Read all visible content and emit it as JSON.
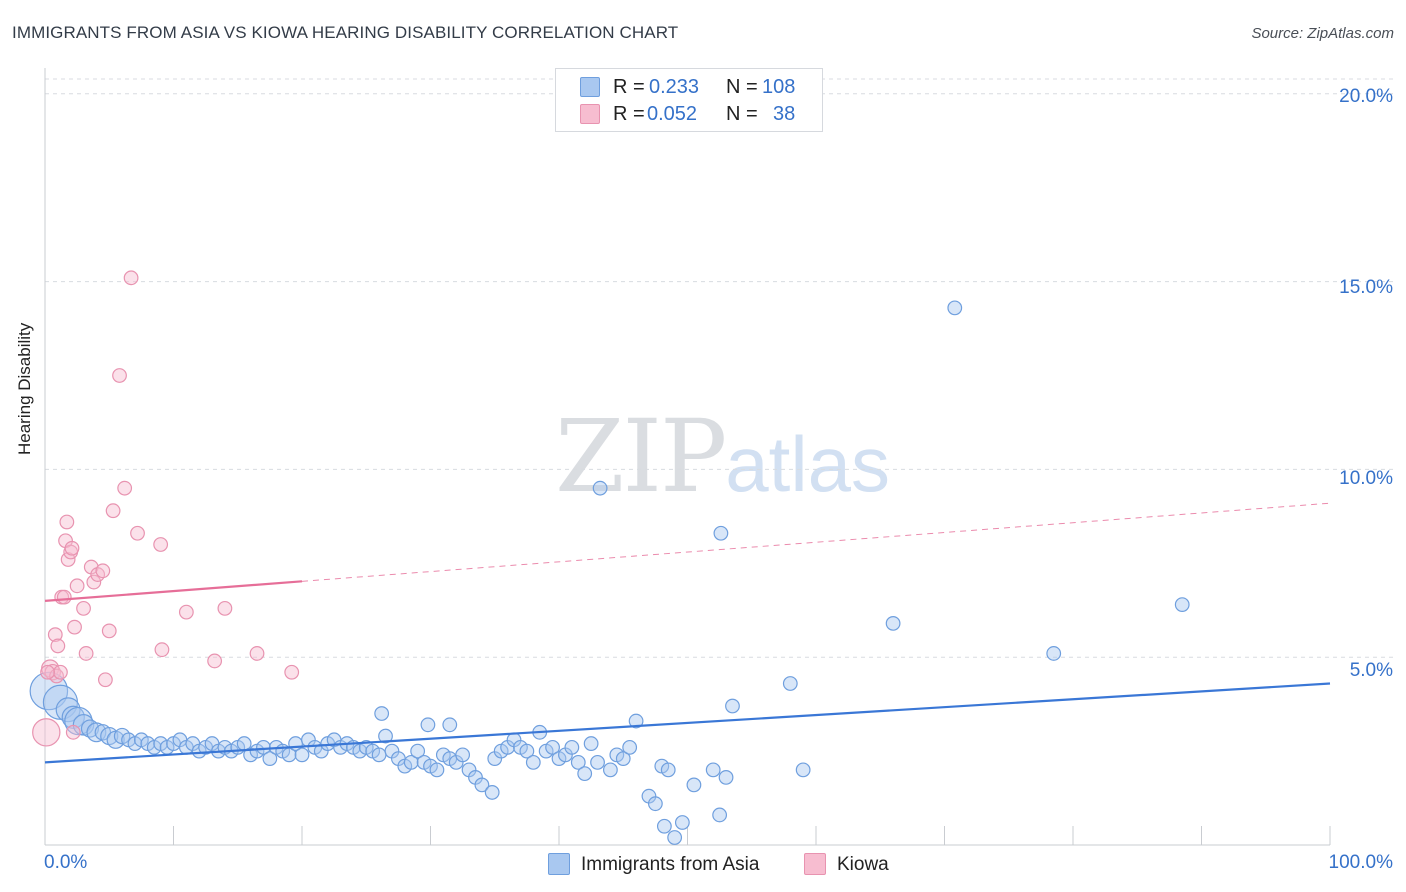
{
  "title": "IMMIGRANTS FROM ASIA VS KIOWA HEARING DISABILITY CORRELATION CHART",
  "source": "Source: ZipAtlas.com",
  "watermark": {
    "zip": "ZIP",
    "atlas": "atlas"
  },
  "legend_top": {
    "rows": [
      {
        "r_label": "R =",
        "r_value": "0.233",
        "n_label": "N =",
        "n_value": "108"
      },
      {
        "r_label": "R =",
        "r_value": "0.052",
        "n_label": "N =",
        "n_value": "38"
      }
    ]
  },
  "legend_bottom": [
    {
      "label": "Immigrants from Asia"
    },
    {
      "label": "Kiowa"
    }
  ],
  "axis": {
    "ylabel": "Hearing Disability",
    "y_ticks": [
      "5.0%",
      "10.0%",
      "15.0%",
      "20.0%"
    ],
    "x_min_label": "0.0%",
    "x_max_label": "100.0%"
  },
  "colors": {
    "blue": "#3a77d6",
    "blue_fill": "#a9c8f0",
    "pink": "#e66e98",
    "pink_fill": "#f7bdd0",
    "grid": "#d8dbe0",
    "axis_text": "#3571c9"
  },
  "chart_data": {
    "type": "scatter",
    "xlabel": "",
    "ylabel": "Hearing Disability",
    "xlim": [
      0,
      100
    ],
    "ylim": [
      0,
      20.5
    ],
    "y_gridlines": [
      5,
      10,
      15,
      20
    ],
    "series": [
      {
        "name": "Immigrants from Asia",
        "color": "#3a77d6",
        "R": 0.233,
        "N": 108,
        "trend": {
          "x0": 0,
          "y0": 2.2,
          "x1": 100,
          "y1": 4.3,
          "solid_until": 100
        },
        "points": [
          [
            0.3,
            4.1,
            2.2
          ],
          [
            1.2,
            3.8,
            2.0
          ],
          [
            1.8,
            3.6,
            1.4
          ],
          [
            2.2,
            3.4,
            1.3
          ],
          [
            2.6,
            3.3,
            1.6
          ],
          [
            3.0,
            3.2,
            1.2
          ],
          [
            3.5,
            3.1,
            1.0
          ],
          [
            4.0,
            3.0,
            1.1
          ],
          [
            4.5,
            3.0,
            0.9
          ],
          [
            5.0,
            2.9,
            1.0
          ],
          [
            5.5,
            2.8,
            1.0
          ],
          [
            6.0,
            2.9,
            0.9
          ],
          [
            6.5,
            2.8,
            0.8
          ],
          [
            7.0,
            2.7,
            0.8
          ],
          [
            7.5,
            2.8,
            0.8
          ],
          [
            8.0,
            2.7,
            0.8
          ],
          [
            8.5,
            2.6,
            0.8
          ],
          [
            9.0,
            2.7,
            0.8
          ],
          [
            9.5,
            2.6,
            0.8
          ],
          [
            10.0,
            2.7,
            0.8
          ],
          [
            10.5,
            2.8,
            0.8
          ],
          [
            11.0,
            2.6,
            0.8
          ],
          [
            11.5,
            2.7,
            0.8
          ],
          [
            12.0,
            2.5,
            0.8
          ],
          [
            12.5,
            2.6,
            0.8
          ],
          [
            13.0,
            2.7,
            0.8
          ],
          [
            13.5,
            2.5,
            0.8
          ],
          [
            14.0,
            2.6,
            0.8
          ],
          [
            14.5,
            2.5,
            0.8
          ],
          [
            15.0,
            2.6,
            0.8
          ],
          [
            15.5,
            2.7,
            0.8
          ],
          [
            16.0,
            2.4,
            0.8
          ],
          [
            16.5,
            2.5,
            0.8
          ],
          [
            17.0,
            2.6,
            0.8
          ],
          [
            17.5,
            2.3,
            0.8
          ],
          [
            18.0,
            2.6,
            0.8
          ],
          [
            18.5,
            2.5,
            0.8
          ],
          [
            19.0,
            2.4,
            0.8
          ],
          [
            19.5,
            2.7,
            0.8
          ],
          [
            20.0,
            2.4,
            0.8
          ],
          [
            20.5,
            2.8,
            0.8
          ],
          [
            21.0,
            2.6,
            0.8
          ],
          [
            21.5,
            2.5,
            0.8
          ],
          [
            22.0,
            2.7,
            0.8
          ],
          [
            22.5,
            2.8,
            0.8
          ],
          [
            23.0,
            2.6,
            0.8
          ],
          [
            23.5,
            2.7,
            0.8
          ],
          [
            24.0,
            2.6,
            0.8
          ],
          [
            24.5,
            2.5,
            0.8
          ],
          [
            25.0,
            2.6,
            0.8
          ],
          [
            25.5,
            2.5,
            0.8
          ],
          [
            26.0,
            2.4,
            0.8
          ],
          [
            26.5,
            2.9,
            0.8
          ],
          [
            27.0,
            2.5,
            0.8
          ],
          [
            27.5,
            2.3,
            0.8
          ],
          [
            28.0,
            2.1,
            0.8
          ],
          [
            28.5,
            2.2,
            0.8
          ],
          [
            29.0,
            2.5,
            0.8
          ],
          [
            29.5,
            2.2,
            0.8
          ],
          [
            30.0,
            2.1,
            0.8
          ],
          [
            30.5,
            2.0,
            0.8
          ],
          [
            31.0,
            2.4,
            0.8
          ],
          [
            31.5,
            2.3,
            0.8
          ],
          [
            32.0,
            2.2,
            0.8
          ],
          [
            32.5,
            2.4,
            0.8
          ],
          [
            33.0,
            2.0,
            0.8
          ],
          [
            33.5,
            1.8,
            0.8
          ],
          [
            34.0,
            1.6,
            0.8
          ],
          [
            35.0,
            2.3,
            0.8
          ],
          [
            35.5,
            2.5,
            0.8
          ],
          [
            36.0,
            2.6,
            0.8
          ],
          [
            36.5,
            2.8,
            0.8
          ],
          [
            37.0,
            2.6,
            0.8
          ],
          [
            37.5,
            2.5,
            0.8
          ],
          [
            38.0,
            2.2,
            0.8
          ],
          [
            38.5,
            3.0,
            0.8
          ],
          [
            39.0,
            2.5,
            0.8
          ],
          [
            39.5,
            2.6,
            0.8
          ],
          [
            40.0,
            2.3,
            0.8
          ],
          [
            40.5,
            2.4,
            0.8
          ],
          [
            41.0,
            2.6,
            0.8
          ],
          [
            41.5,
            2.2,
            0.8
          ],
          [
            42.0,
            1.9,
            0.8
          ],
          [
            42.5,
            2.7,
            0.8
          ],
          [
            43.0,
            2.2,
            0.8
          ],
          [
            44.0,
            2.0,
            0.8
          ],
          [
            44.5,
            2.4,
            0.8
          ],
          [
            45.0,
            2.3,
            0.8
          ],
          [
            45.5,
            2.6,
            0.8
          ],
          [
            46.0,
            3.3,
            0.8
          ],
          [
            47.0,
            1.3,
            0.8
          ],
          [
            47.5,
            1.1,
            0.8
          ],
          [
            48.0,
            2.1,
            0.8
          ],
          [
            48.5,
            2.0,
            0.8
          ],
          [
            49.0,
            0.2,
            0.8
          ],
          [
            50.5,
            1.6,
            0.8
          ],
          [
            52.0,
            2.0,
            0.8
          ],
          [
            52.5,
            0.8,
            0.8
          ],
          [
            53.0,
            1.8,
            0.8
          ],
          [
            53.5,
            3.7,
            0.8
          ],
          [
            58.0,
            4.3,
            0.8
          ],
          [
            59.0,
            2.0,
            0.8
          ],
          [
            48.2,
            0.5,
            0.8
          ],
          [
            49.6,
            0.6,
            0.8
          ],
          [
            34.8,
            1.4,
            0.8
          ],
          [
            26.2,
            3.5,
            0.8
          ],
          [
            29.8,
            3.2,
            0.8
          ],
          [
            31.5,
            3.2,
            0.8
          ],
          [
            43.2,
            9.5,
            0.8
          ],
          [
            52.6,
            8.3,
            0.8
          ],
          [
            70.8,
            14.3,
            0.8
          ],
          [
            66.0,
            5.9,
            0.8
          ],
          [
            78.5,
            5.1,
            0.8
          ],
          [
            88.5,
            6.4,
            0.8
          ]
        ]
      },
      {
        "name": "Kiowa",
        "color": "#e66e98",
        "R": 0.052,
        "N": 38,
        "trend": {
          "x0": 0,
          "y0": 6.5,
          "x1": 100,
          "y1": 9.1,
          "solid_until": 20
        },
        "points": [
          [
            0.1,
            3.0,
            1.6
          ],
          [
            0.4,
            4.7,
            1.0
          ],
          [
            0.6,
            4.6,
            0.9
          ],
          [
            0.8,
            5.6,
            0.8
          ],
          [
            0.9,
            4.5,
            0.8
          ],
          [
            1.0,
            5.3,
            0.8
          ],
          [
            1.2,
            4.6,
            0.8
          ],
          [
            1.3,
            6.6,
            0.8
          ],
          [
            1.5,
            6.6,
            0.8
          ],
          [
            1.6,
            8.1,
            0.8
          ],
          [
            1.7,
            8.6,
            0.8
          ],
          [
            1.8,
            7.6,
            0.8
          ],
          [
            2.0,
            7.8,
            0.8
          ],
          [
            2.1,
            7.9,
            0.8
          ],
          [
            2.2,
            3.0,
            0.8
          ],
          [
            2.3,
            5.8,
            0.8
          ],
          [
            2.5,
            6.9,
            0.8
          ],
          [
            3.0,
            6.3,
            0.8
          ],
          [
            3.2,
            5.1,
            0.8
          ],
          [
            3.6,
            7.4,
            0.8
          ],
          [
            3.8,
            7.0,
            0.8
          ],
          [
            4.1,
            7.2,
            0.8
          ],
          [
            4.5,
            7.3,
            0.8
          ],
          [
            4.7,
            4.4,
            0.8
          ],
          [
            5.0,
            5.7,
            0.8
          ],
          [
            5.3,
            8.9,
            0.8
          ],
          [
            5.8,
            12.5,
            0.8
          ],
          [
            6.2,
            9.5,
            0.8
          ],
          [
            6.7,
            15.1,
            0.8
          ],
          [
            7.2,
            8.3,
            0.8
          ],
          [
            9.0,
            8.0,
            0.8
          ],
          [
            9.1,
            5.2,
            0.8
          ],
          [
            11.0,
            6.2,
            0.8
          ],
          [
            13.2,
            4.9,
            0.8
          ],
          [
            14.0,
            6.3,
            0.8
          ],
          [
            16.5,
            5.1,
            0.8
          ],
          [
            19.2,
            4.6,
            0.8
          ],
          [
            0.2,
            4.6,
            0.8
          ]
        ]
      }
    ]
  }
}
